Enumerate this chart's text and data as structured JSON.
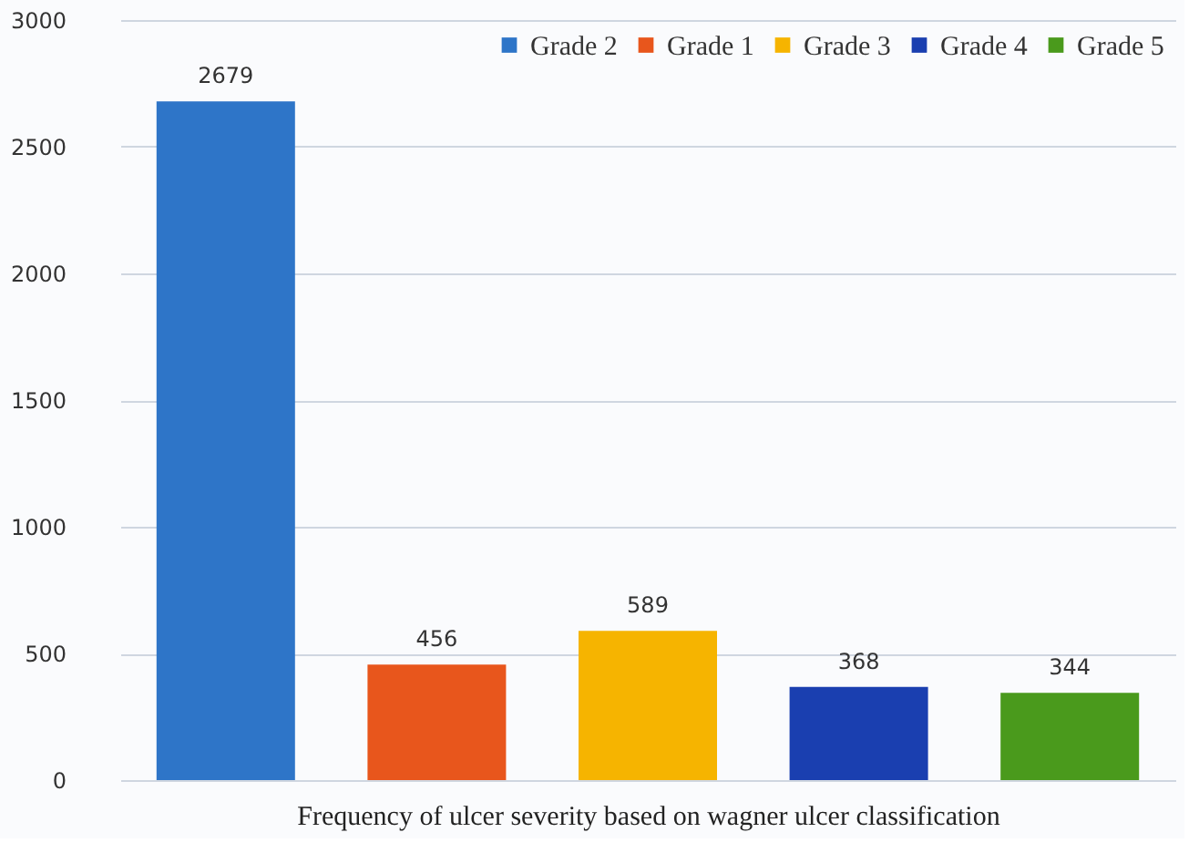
{
  "chart_data": {
    "type": "bar",
    "xlabel": "Frequency of ulcer severity based on wagner ulcer classification",
    "categories": [
      null,
      null,
      null,
      null,
      null
    ],
    "series": [
      {
        "name": "Grade 2",
        "color": "#2e75c8",
        "values": [
          2679,
          null,
          null,
          null,
          null
        ]
      },
      {
        "name": "Grade 1",
        "color": "#e8561c",
        "values": [
          null,
          456,
          null,
          null,
          null
        ]
      },
      {
        "name": "Grade 3",
        "color": "#f6b400",
        "values": [
          null,
          null,
          589,
          null,
          null
        ]
      },
      {
        "name": "Grade 4",
        "color": "#1a3fb0",
        "values": [
          null,
          null,
          null,
          368,
          null
        ]
      },
      {
        "name": "Grade 5",
        "color": "#4a9a1c",
        "values": [
          null,
          null,
          null,
          null,
          344
        ]
      }
    ],
    "ylim": [
      0,
      3000
    ],
    "yticks": [
      0,
      500,
      1000,
      1500,
      2000,
      2500,
      3000
    ],
    "grid": "y",
    "legend": "top right",
    "data_labels": true
  }
}
